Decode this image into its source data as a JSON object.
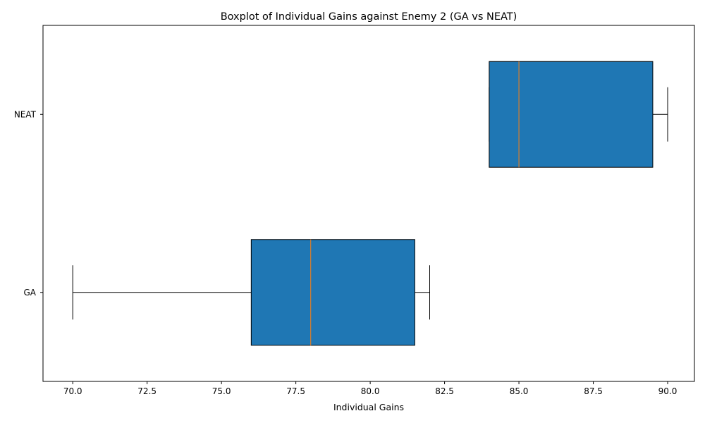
{
  "chart_data": {
    "type": "boxplot",
    "orientation": "horizontal",
    "title": "Boxplot of Individual Gains against Enemy 2 (GA vs NEAT)",
    "xlabel": "Individual Gains",
    "ylabel": "",
    "xlim": [
      69.0,
      90.9
    ],
    "x_ticks": [
      70.0,
      72.5,
      75.0,
      77.5,
      80.0,
      82.5,
      85.0,
      87.5,
      90.0
    ],
    "x_tick_labels": [
      "70.0",
      "72.5",
      "75.0",
      "77.5",
      "80.0",
      "82.5",
      "85.0",
      "87.5",
      "90.0"
    ],
    "categories": [
      "GA",
      "NEAT"
    ],
    "series": [
      {
        "category": "GA",
        "whisker_low": 70.0,
        "q1": 76.0,
        "median": 78.0,
        "q3": 81.5,
        "whisker_high": 82.0
      },
      {
        "category": "NEAT",
        "whisker_low": 84.0,
        "q1": 84.0,
        "median": 85.0,
        "q3": 89.5,
        "whisker_high": 90.0
      }
    ],
    "box_color": "#1f77b4",
    "median_color": "#ff7f0e",
    "grid": false,
    "legend": "none"
  }
}
